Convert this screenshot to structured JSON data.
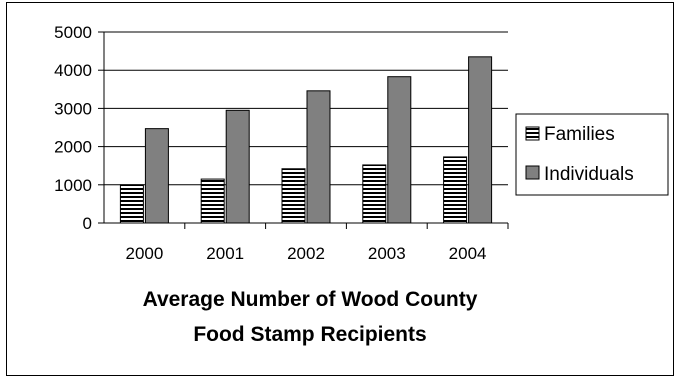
{
  "chart_data": {
    "type": "bar",
    "title": "Average Number of Wood County Food Stamp Recipients",
    "title_lines": [
      "Average Number of Wood County",
      "Food Stamp Recipients"
    ],
    "categories": [
      "2000",
      "2001",
      "2002",
      "2003",
      "2004"
    ],
    "series": [
      {
        "name": "Families",
        "values": [
          1000,
          1150,
          1420,
          1520,
          1730
        ],
        "pattern": "horizontal-stripes"
      },
      {
        "name": "Individuals",
        "values": [
          2470,
          2950,
          3460,
          3830,
          4350
        ],
        "color": "#808080"
      }
    ],
    "ylim": [
      0,
      5000
    ],
    "yticks": [
      0,
      1000,
      2000,
      3000,
      4000,
      5000
    ],
    "grid": true,
    "legend_position": "right"
  }
}
